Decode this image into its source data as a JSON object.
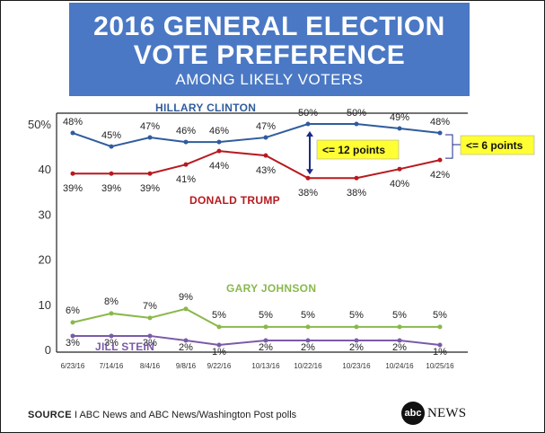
{
  "header": {
    "title_line1": "2016 GENERAL ELECTION",
    "title_line2": "VOTE PREFERENCE",
    "subtitle": "AMONG LIKELY VOTERS"
  },
  "chart_data": {
    "type": "line",
    "title": "2016 General Election Vote Preference",
    "subtitle": "Among likely voters",
    "categories": [
      "6/23/16",
      "7/14/16",
      "8/4/16",
      "9/8/16",
      "9/22/16",
      "10/13/16",
      "10/22/16",
      "10/23/16",
      "10/24/16",
      "10/25/16"
    ],
    "ylim": [
      0,
      50
    ],
    "yticks": [
      0,
      10,
      20,
      30,
      40,
      50
    ],
    "ytick_labels": [
      "0",
      "10",
      "20",
      "30",
      "40",
      "50%"
    ],
    "grid": false,
    "series": [
      {
        "name": "HILLARY CLINTON",
        "color": "#2f5c9e",
        "values": [
          48,
          45,
          47,
          46,
          46,
          47,
          50,
          50,
          49,
          48
        ],
        "labels": [
          "48%",
          "45%",
          "47%",
          "46%",
          "46%",
          "47%",
          "50%",
          "50%",
          "49%",
          "48%"
        ]
      },
      {
        "name": "DONALD TRUMP",
        "color": "#b8191f",
        "values": [
          39,
          39,
          39,
          41,
          44,
          43,
          38,
          38,
          40,
          42
        ],
        "labels": [
          "39%",
          "39%",
          "39%",
          "41%",
          "44%",
          "43%",
          "38%",
          "38%",
          "40%",
          "42%"
        ]
      },
      {
        "name": "GARY JOHNSON",
        "color": "#8ab84c",
        "values": [
          6,
          8,
          7,
          9,
          5,
          5,
          5,
          5,
          5,
          5
        ],
        "labels": [
          "6%",
          "8%",
          "7%",
          "9%",
          "5%",
          "5%",
          "5%",
          "5%",
          "5%",
          "5%"
        ]
      },
      {
        "name": "JILL STEIN",
        "color": "#7a5aa8",
        "values": [
          3,
          3,
          3,
          2,
          1,
          2,
          2,
          2,
          2,
          1
        ],
        "labels": [
          "3%",
          "3%",
          "3%",
          "2%",
          "1%",
          "2%",
          "2%",
          "2%",
          "2%",
          "1%"
        ]
      }
    ],
    "annotations": [
      {
        "text": "<= 12 points",
        "from_category": "10/22/16",
        "between": [
          50,
          38
        ]
      },
      {
        "text": "<= 6 points",
        "from_category": "10/25/16",
        "between": [
          48,
          42
        ]
      }
    ]
  },
  "footer": {
    "source_label": "SOURCE",
    "source_text": "ABC News and ABC News/Washington Post polls"
  },
  "logo": {
    "badge_text": "abc",
    "brand_text": "NEWS"
  }
}
